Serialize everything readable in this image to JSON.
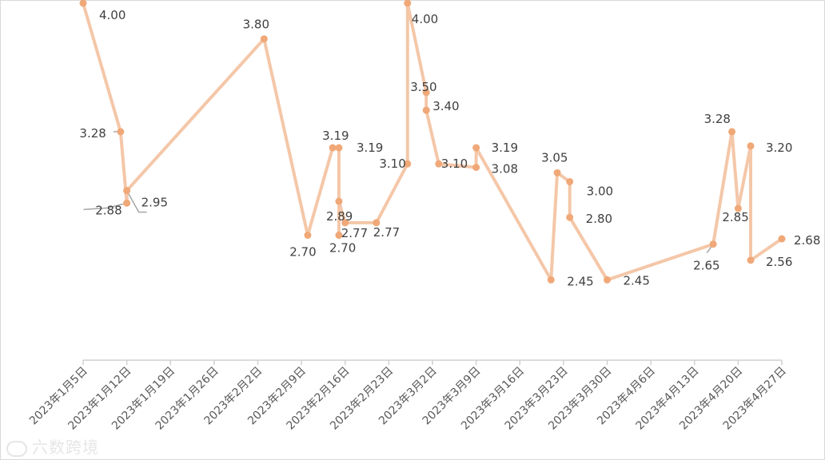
{
  "chart_data": {
    "type": "line",
    "title": "",
    "xlabel": "",
    "ylabel": "",
    "x_tick_labels": [
      "2023年1月5日",
      "2023年1月12日",
      "2023年1月19日",
      "2023年1月26日",
      "2023年2月2日",
      "2023年2月9日",
      "2023年2月16日",
      "2023年2月23日",
      "2023年3月2日",
      "2023年3月9日",
      "2023年3月16日",
      "2023年3月23日",
      "2023年3月30日",
      "2023年4月6日",
      "2023年4月13日",
      "2023年4月20日",
      "2023年4月27日"
    ],
    "x_range": [
      "2023-01-05",
      "2023-04-27"
    ],
    "y_range": [
      2.0,
      4.0
    ],
    "color": "#f4c7a8",
    "marker_color": "#f0a878",
    "series": [
      {
        "points": [
          {
            "x": "2023-01-05",
            "y": 4.0,
            "label": "4.00"
          },
          {
            "x": "2023-01-11",
            "y": 3.28,
            "label": "3.28"
          },
          {
            "x": "2023-01-12",
            "y": 2.88,
            "label": "2.88"
          },
          {
            "x": "2023-01-12",
            "y": 2.95,
            "label": "2.95"
          },
          {
            "x": "2023-02-03",
            "y": 3.8,
            "label": "3.80"
          },
          {
            "x": "2023-02-10",
            "y": 2.7,
            "label": "2.70"
          },
          {
            "x": "2023-02-14",
            "y": 3.19,
            "label": "3.19"
          },
          {
            "x": "2023-02-15",
            "y": 3.19,
            "label": "3.19"
          },
          {
            "x": "2023-02-15",
            "y": 2.7,
            "label": "2.70"
          },
          {
            "x": "2023-02-15",
            "y": 2.89,
            "label": "2.89"
          },
          {
            "x": "2023-02-16",
            "y": 2.77,
            "label": "2.77"
          },
          {
            "x": "2023-02-21",
            "y": 2.77,
            "label": "2.77"
          },
          {
            "x": "2023-02-26",
            "y": 3.1,
            "label": "3.10"
          },
          {
            "x": "2023-02-26",
            "y": 4.0,
            "label": "4.00"
          },
          {
            "x": "2023-03-01",
            "y": 3.5,
            "label": "3.50"
          },
          {
            "x": "2023-03-01",
            "y": 3.4,
            "label": "3.40"
          },
          {
            "x": "2023-03-03",
            "y": 3.1,
            "label": "3.10"
          },
          {
            "x": "2023-03-09",
            "y": 3.08,
            "label": "3.08"
          },
          {
            "x": "2023-03-09",
            "y": 3.19,
            "label": "3.19"
          },
          {
            "x": "2023-03-21",
            "y": 2.45,
            "label": "2.45"
          },
          {
            "x": "2023-03-22",
            "y": 3.05,
            "label": "3.05"
          },
          {
            "x": "2023-03-24",
            "y": 3.0,
            "label": "3.00"
          },
          {
            "x": "2023-03-24",
            "y": 2.8,
            "label": "2.80"
          },
          {
            "x": "2023-03-30",
            "y": 2.45,
            "label": "2.45"
          },
          {
            "x": "2023-04-16",
            "y": 2.65,
            "label": "2.65"
          },
          {
            "x": "2023-04-19",
            "y": 3.28,
            "label": "3.28"
          },
          {
            "x": "2023-04-20",
            "y": 2.85,
            "label": "2.85"
          },
          {
            "x": "2023-04-22",
            "y": 3.2,
            "label": "3.20"
          },
          {
            "x": "2023-04-22",
            "y": 2.56,
            "label": "2.56"
          },
          {
            "x": "2023-04-27",
            "y": 2.68,
            "label": "2.68"
          }
        ]
      }
    ],
    "grid": false,
    "legend": "none"
  },
  "watermark": {
    "icon": "eye-logo-icon",
    "text": "六数跨境"
  }
}
